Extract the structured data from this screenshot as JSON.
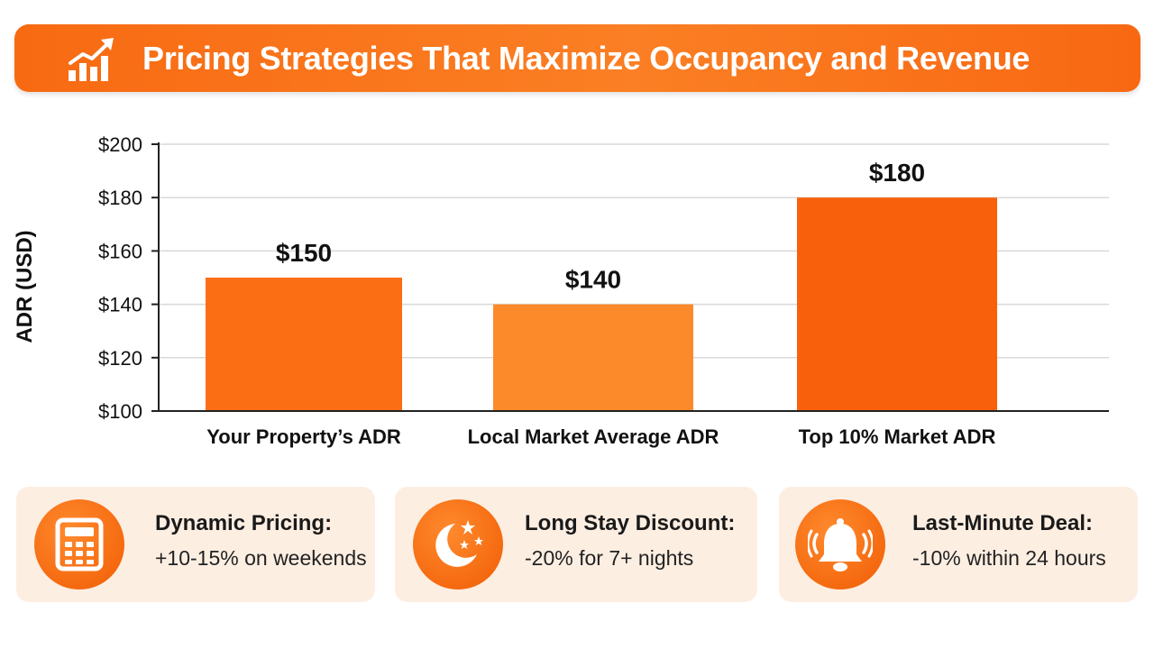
{
  "header": {
    "title": "Pricing Strategies That Maximize Occupancy and Revenue",
    "icon": "growth-chart-icon"
  },
  "chart_data": {
    "type": "bar",
    "title": "",
    "xlabel": "",
    "ylabel": "ADR (USD)",
    "ylim": [
      100,
      200
    ],
    "yticks": [
      100,
      120,
      140,
      160,
      180,
      200
    ],
    "ytick_labels": [
      "$100",
      "$120",
      "$140",
      "$160",
      "$180",
      "$200"
    ],
    "categories": [
      "Your Property’s ADR",
      "Local Market Average ADR",
      "Top 10% Market ADR"
    ],
    "values": [
      150,
      140,
      180
    ],
    "value_labels": [
      "$150",
      "$140",
      "$180"
    ],
    "colors": [
      "#fb6e14",
      "#fd8a2a",
      "#f8600c"
    ],
    "grid": true,
    "legend": "none"
  },
  "strategies": [
    {
      "icon": "calculator-icon",
      "title": "Dynamic Pricing:",
      "text": "+10-15% on weekends"
    },
    {
      "icon": "moon-stars-icon",
      "title": "Long Stay Discount:",
      "text": "-20% for 7+ nights"
    },
    {
      "icon": "bell-icon",
      "title": "Last-Minute Deal:",
      "text": "-10% within 24 hours"
    }
  ]
}
